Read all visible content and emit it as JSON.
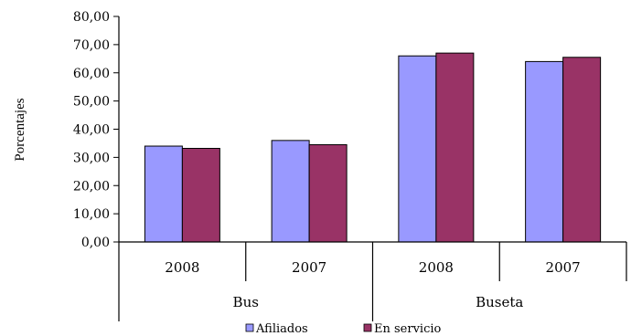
{
  "chart_data": {
    "type": "bar",
    "title": "",
    "xlabel": "",
    "ylabel": "Porcentajes",
    "ylim": [
      0,
      80
    ],
    "yticks": [
      "0,00",
      "10,00",
      "20,00",
      "30,00",
      "40,00",
      "50,00",
      "60,00",
      "70,00",
      "80,00"
    ],
    "groups": [
      {
        "name": "Bus",
        "categories": [
          "2008",
          "2007"
        ]
      },
      {
        "name": "Buseta",
        "categories": [
          "2008",
          "2007"
        ]
      }
    ],
    "categories": [
      "2008",
      "2007",
      "2008",
      "2007"
    ],
    "series": [
      {
        "name": "Afiliados",
        "color": "#9999ff",
        "values": [
          34.0,
          36.0,
          66.0,
          64.0
        ]
      },
      {
        "name": "En servicio",
        "color": "#993366",
        "values": [
          33.2,
          34.5,
          67.0,
          65.5
        ]
      }
    ],
    "grid": false,
    "legend_position": "bottom"
  }
}
